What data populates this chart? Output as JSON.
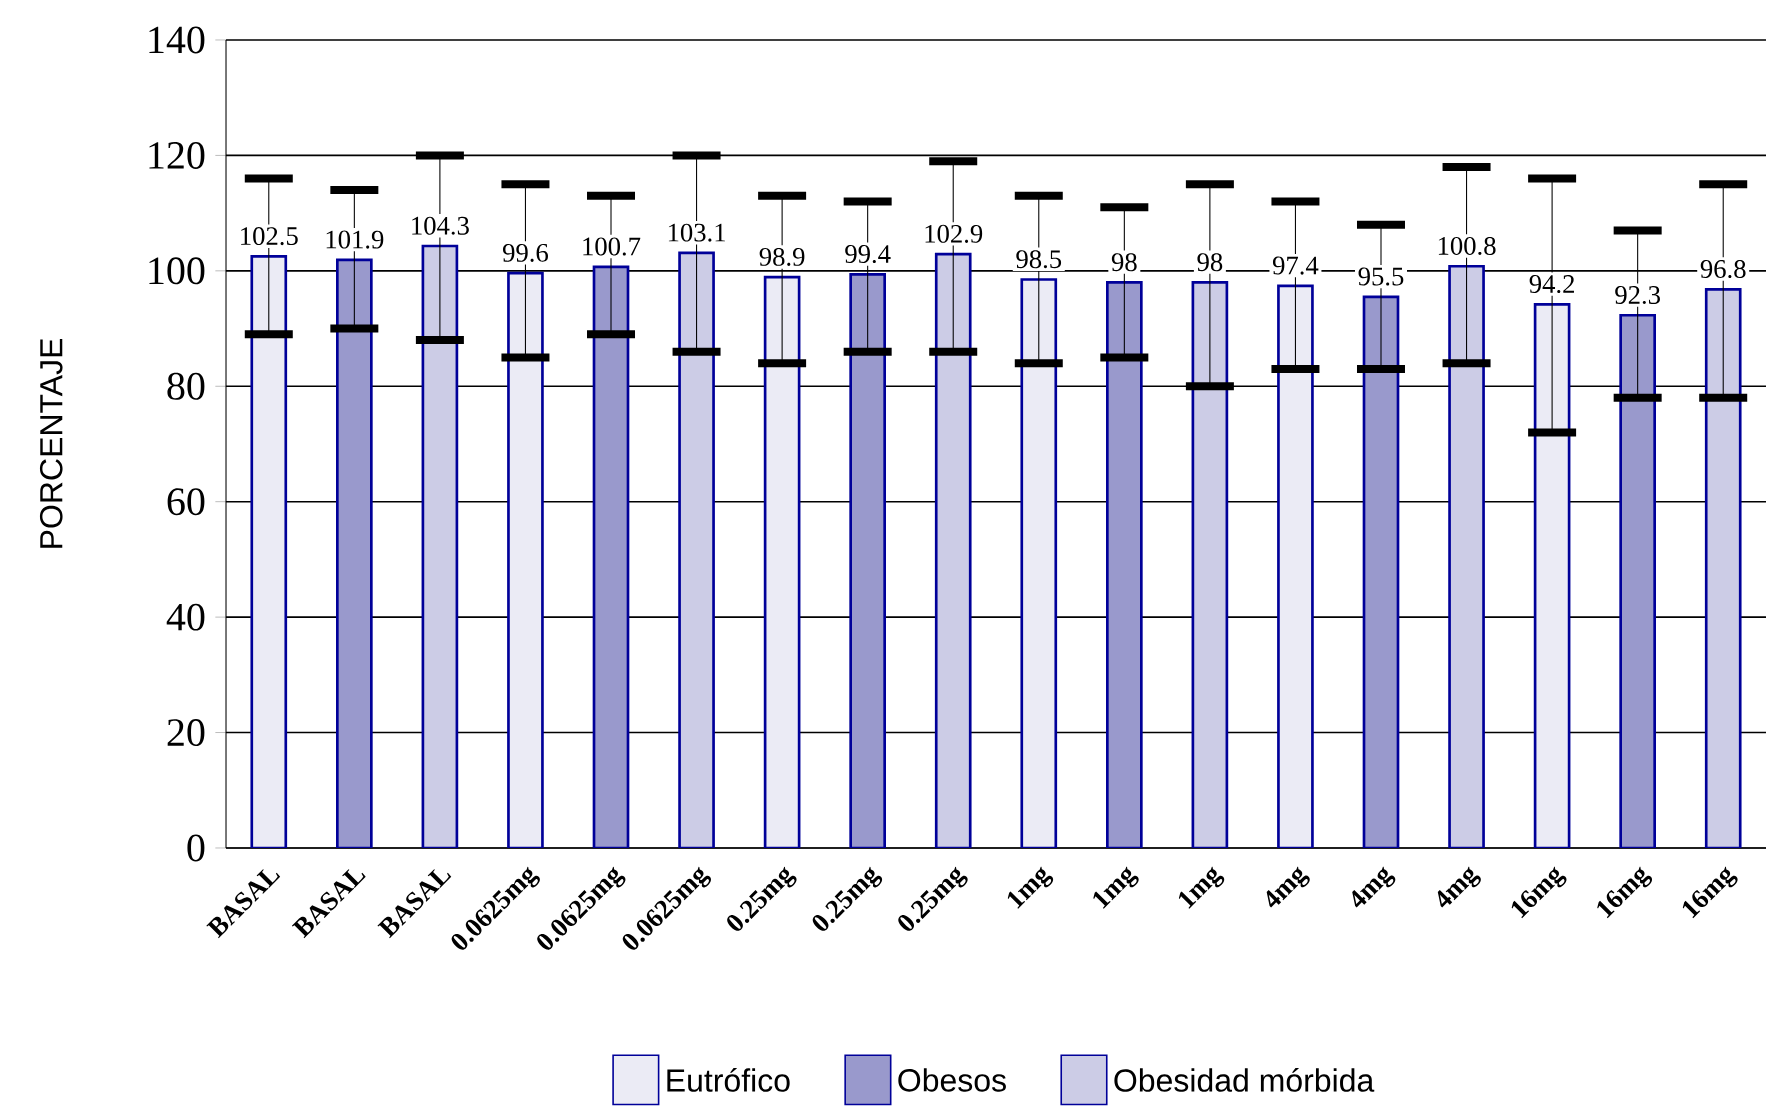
{
  "chart_data": {
    "type": "bar",
    "ylabel": "PORCENTAJE",
    "categories": [
      "BASAL",
      "BASAL",
      "BASAL",
      "0.0625mg",
      "0.0625mg",
      "0.0625mg",
      "0.25mg",
      "0.25mg",
      "0.25mg",
      "1mg",
      "1mg",
      "1mg",
      "4mg",
      "4mg",
      "4mg",
      "16mg",
      "16mg",
      "16mg"
    ],
    "series": [
      {
        "name": "Eutrófico",
        "color": "#ebebf5",
        "values": [
          102.5,
          null,
          null,
          99.6,
          null,
          null,
          98.9,
          null,
          null,
          98.5,
          null,
          null,
          97.4,
          null,
          null,
          94.2,
          null,
          null
        ],
        "errors": [
          [
            89,
            116
          ],
          null,
          null,
          [
            85,
            115
          ],
          null,
          null,
          [
            84,
            113
          ],
          null,
          null,
          [
            84,
            113
          ],
          null,
          null,
          [
            83,
            112
          ],
          null,
          null,
          [
            72,
            116
          ],
          null,
          null
        ]
      },
      {
        "name": "Obesos",
        "color": "#9999cc",
        "values": [
          null,
          101.9,
          null,
          null,
          100.7,
          null,
          null,
          99.4,
          null,
          null,
          98,
          null,
          null,
          95.5,
          null,
          null,
          92.3,
          null
        ],
        "errors": [
          null,
          [
            90,
            114
          ],
          null,
          null,
          [
            89,
            113
          ],
          null,
          null,
          [
            86,
            112
          ],
          null,
          null,
          [
            85,
            111
          ],
          null,
          null,
          [
            83,
            108
          ],
          null,
          null,
          [
            78,
            107
          ],
          null
        ]
      },
      {
        "name": "Obesidad mórbida",
        "color": "#ccccE6",
        "values": [
          null,
          null,
          104.3,
          null,
          null,
          103.1,
          null,
          null,
          102.9,
          null,
          null,
          98,
          null,
          null,
          100.8,
          null,
          null,
          96.8
        ],
        "errors": [
          null,
          null,
          [
            88,
            120
          ],
          null,
          null,
          [
            86,
            120
          ],
          null,
          null,
          [
            86,
            119
          ],
          null,
          null,
          [
            80,
            115
          ],
          null,
          null,
          [
            84,
            118
          ],
          null,
          null,
          [
            78,
            115
          ]
        ]
      }
    ],
    "ylim": [
      0,
      140
    ],
    "yticks": [
      0,
      20,
      40,
      60,
      80,
      100,
      120,
      140
    ],
    "grid": "y",
    "legend": "bottom",
    "data_labels": true
  }
}
